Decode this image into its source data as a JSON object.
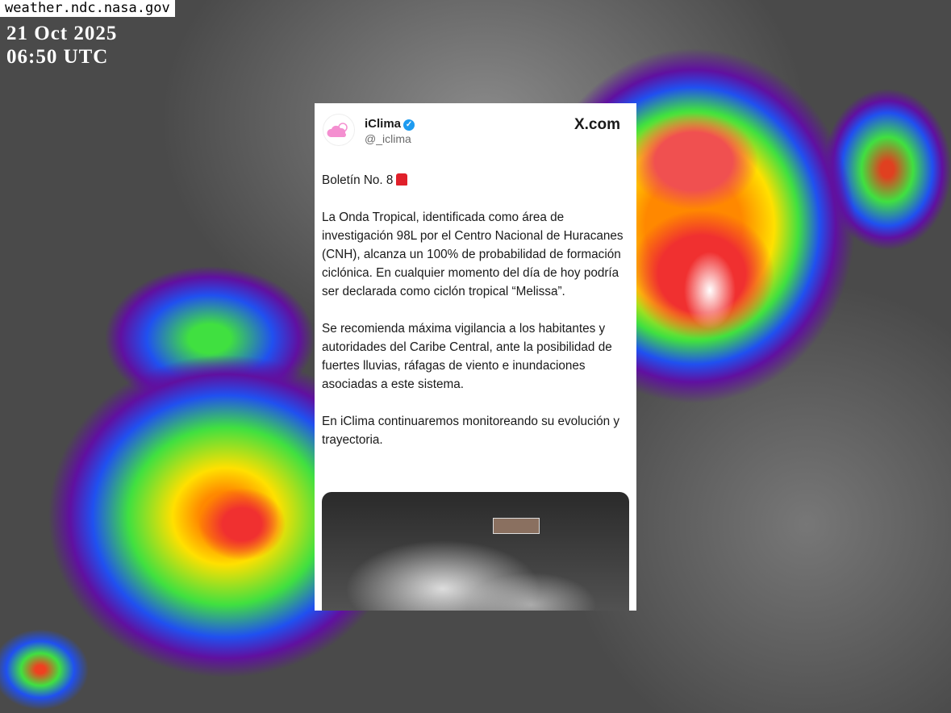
{
  "overlay": {
    "source": "weather.ndc.nasa.gov",
    "date": "21 Oct 2025",
    "time": "06:50 UTC"
  },
  "tweet": {
    "name": "iClima",
    "handle": "@_iclima",
    "verified": true,
    "site": "X.com",
    "paragraphs": [
      "Boletín No. 8",
      "La Onda Tropical, identificada como área de investigación 98L por el Centro Nacional de Huracanes (CNH), alcanza un 100% de probabilidad de formación ciclónica. En cualquier momento del día de hoy podría ser declarada como ciclón tropical “Melissa”.",
      "Se recomienda máxima vigilancia a los habitantes y autoridades del Caribe Central, ante la posibilidad de fuertes lluvias, ráfagas de viento e inundaciones asociadas a este sistema.",
      "En iClima continuaremos monitoreando su evolución y trayectoria."
    ]
  },
  "colors": {
    "verified": "#1d9bf0",
    "avatar": "#f48fd0"
  }
}
